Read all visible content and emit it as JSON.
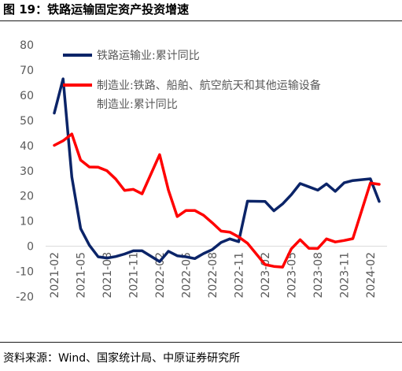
{
  "figure": {
    "title": "图 19：铁路运输固定资产投资增速",
    "source": "资料来源：Wind、国家统计局、中原证券研究所"
  },
  "colors": {
    "rail": "#0b2468",
    "mfg": "#ff0000",
    "axis_text": "#595959",
    "negative_text": "#ff0000",
    "zero_line": "#d9d9d9"
  },
  "chart_data": {
    "type": "line",
    "title": "",
    "xlabel": "",
    "ylabel": "",
    "ylim": [
      -20,
      80
    ],
    "grid": false,
    "legend_position": "top",
    "y_ticks": [
      "80",
      "70",
      "60",
      "50",
      "40",
      "30",
      "20",
      "10",
      "0",
      "-10",
      "-20"
    ],
    "x_tick_labels": [
      "2021-02",
      "2021-05",
      "2021-08",
      "2021-11",
      "2022-02",
      "2022-05",
      "2022-08",
      "2022-11",
      "2023-02",
      "2023-05",
      "2023-08",
      "2023-11",
      "2024-02"
    ],
    "x": [
      "2021-02",
      "2021-03",
      "2021-04",
      "2021-05",
      "2021-06",
      "2021-07",
      "2021-08",
      "2021-09",
      "2021-10",
      "2021-11",
      "2021-12",
      "2022-02",
      "2022-03",
      "2022-04",
      "2022-05",
      "2022-06",
      "2022-07",
      "2022-08",
      "2022-09",
      "2022-10",
      "2022-11",
      "2022-12",
      "2023-02",
      "2023-03",
      "2023-04",
      "2023-05",
      "2023-06",
      "2023-07",
      "2023-08",
      "2023-09",
      "2023-10",
      "2023-11",
      "2023-12",
      "2024-02",
      "2024-03"
    ],
    "series": [
      {
        "name": "铁路运输业:累计同比",
        "values": [
          52.9,
          66.5,
          27.5,
          7.0,
          0.4,
          -4.2,
          -4.7,
          -4.1,
          -3.1,
          -1.8,
          -1.8,
          -6.1,
          -2.0,
          -3.8,
          -4.2,
          -4.9,
          -2.9,
          -1.3,
          1.5,
          2.9,
          1.8,
          17.9,
          17.8,
          14.1,
          16.8,
          20.5,
          24.9,
          23.6,
          22.3,
          24.8,
          21.8,
          25.2,
          26.1,
          26.8,
          17.8
        ]
      },
      {
        "name": "制造业:铁路、船舶、航空航天和其他运输设备制造业:累计同比",
        "values": [
          40.1,
          41.9,
          44.6,
          34.2,
          31.5,
          31.4,
          30.0,
          26.7,
          22.2,
          22.6,
          20.8,
          36.4,
          22.3,
          11.8,
          14.2,
          14.2,
          12.3,
          9.3,
          6.0,
          5.6,
          3.7,
          1.2,
          -7.3,
          -8.0,
          -8.3,
          -1.0,
          2.6,
          -0.8,
          -0.9,
          2.9,
          1.7,
          2.3,
          3.0,
          25.1,
          24.6
        ]
      }
    ]
  },
  "legend": {
    "rail_label": "铁路运输业:累计同比",
    "mfg_label_line1": "制造业:铁路、船舶、航空航天和其他运输设备",
    "mfg_label_line2": "制造业:累计同比"
  }
}
